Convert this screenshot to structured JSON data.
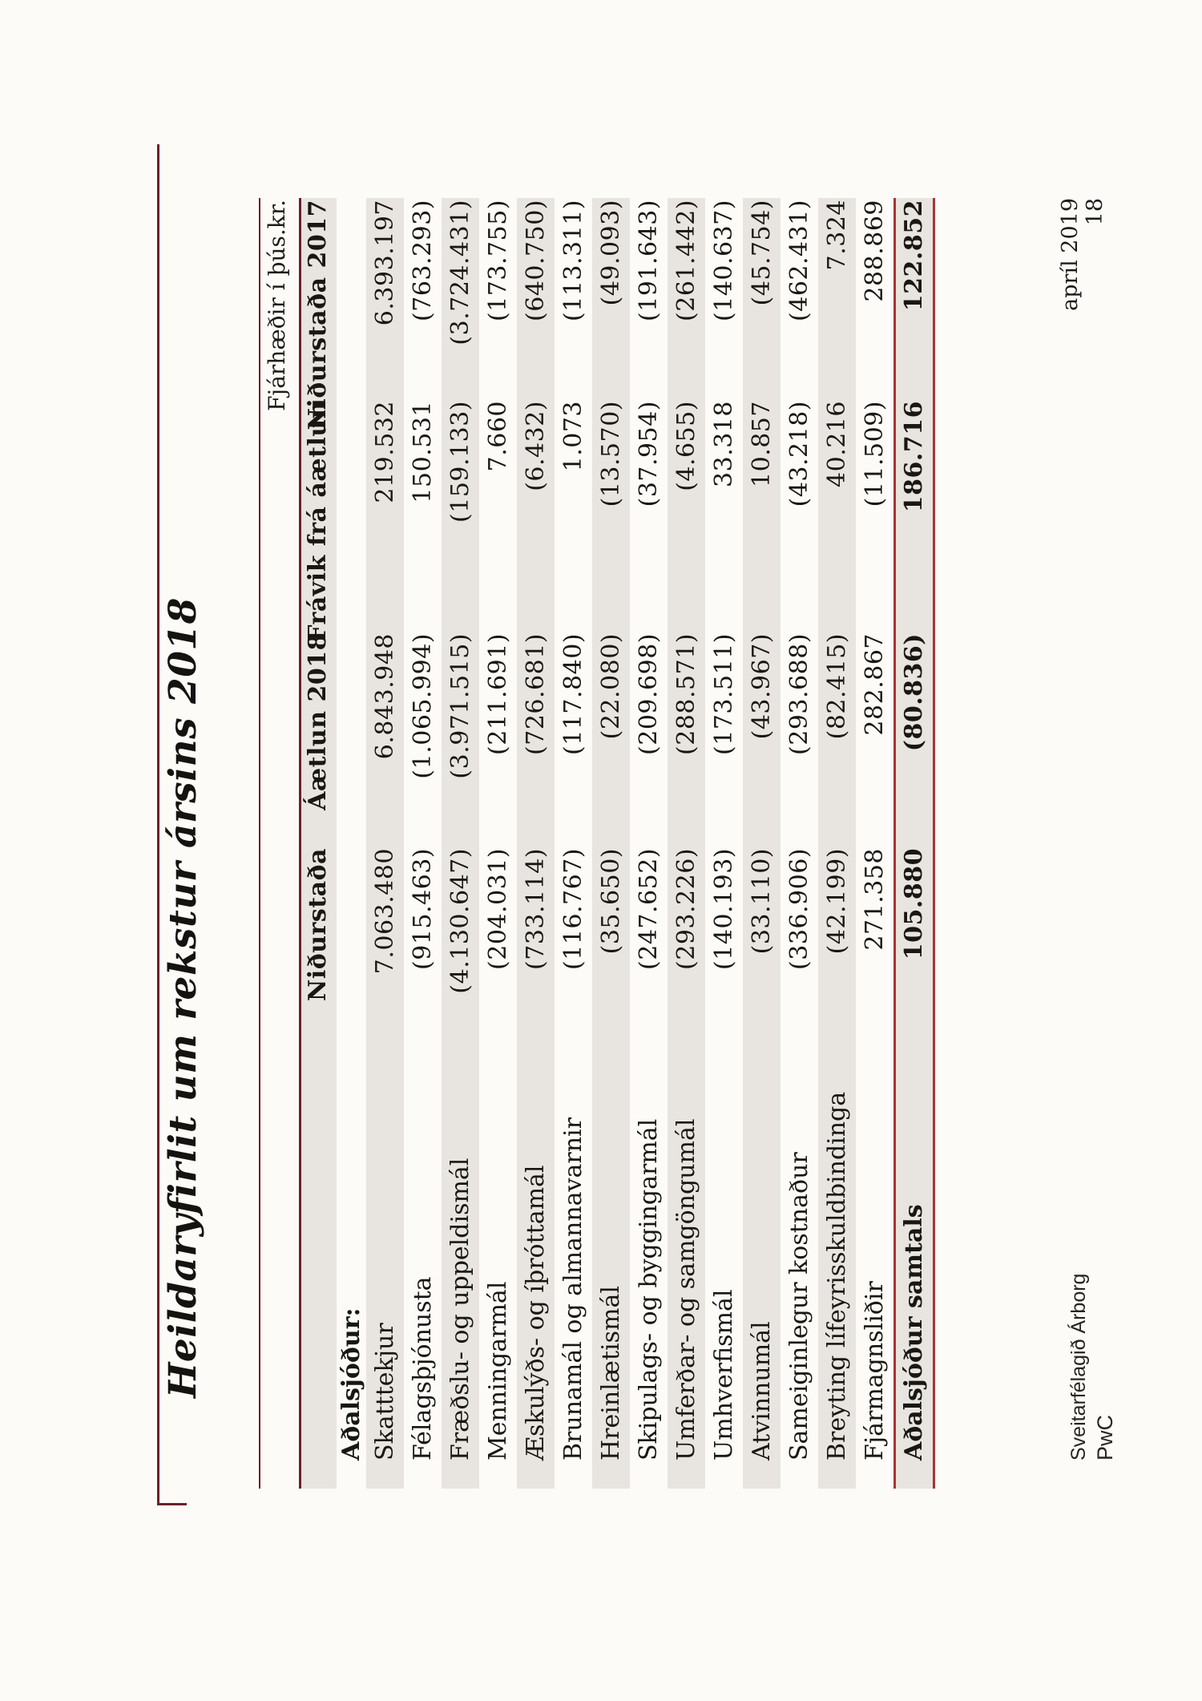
{
  "page": {
    "title": "Heildaryfirlit um rekstur ársins 2018",
    "note": "Fjárhæðir í þús.kr.",
    "footer": {
      "organization": "Sveitarfélagið Árborg",
      "firm": "PwC",
      "date": "apríl 2019",
      "page_number": "18"
    }
  },
  "colors": {
    "rule_maroon": "#6d1f29",
    "rule_red": "#a93430",
    "row_shading": "#e8e4e0",
    "paper": "#fcfbf8"
  },
  "table": {
    "columns": [
      "Niðurstaða",
      "Áætlun 2018",
      "Frávik frá áætlun",
      "Niðurstaða 2017"
    ],
    "section_label": "Aðalsjóður:",
    "rows": [
      {
        "label": "Skatttekjur",
        "values": [
          "7.063.480",
          "6.843.948",
          "219.532",
          "6.393.197"
        ]
      },
      {
        "label": "Félagsþjónusta",
        "values": [
          "(915.463)",
          "(1.065.994)",
          "150.531",
          "(763.293)"
        ]
      },
      {
        "label": "Fræðslu- og uppeldismál",
        "values": [
          "(4.130.647)",
          "(3.971.515)",
          "(159.133)",
          "(3.724.431)"
        ]
      },
      {
        "label": "Menningarmál",
        "values": [
          "(204.031)",
          "(211.691)",
          "7.660",
          "(173.755)"
        ]
      },
      {
        "label": "Æskulýðs- og íþróttamál",
        "values": [
          "(733.114)",
          "(726.681)",
          "(6.432)",
          "(640.750)"
        ]
      },
      {
        "label": "Brunamál og almannavarnir",
        "values": [
          "(116.767)",
          "(117.840)",
          "1.073",
          "(113.311)"
        ]
      },
      {
        "label": "Hreinlætismál",
        "values": [
          "(35.650)",
          "(22.080)",
          "(13.570)",
          "(49.093)"
        ]
      },
      {
        "label": "Skipulags- og byggingarmál",
        "values": [
          "(247.652)",
          "(209.698)",
          "(37.954)",
          "(191.643)"
        ]
      },
      {
        "label": "Umferðar- og samgöngumál",
        "values": [
          "(293.226)",
          "(288.571)",
          "(4.655)",
          "(261.442)"
        ]
      },
      {
        "label": "Umhverfismál",
        "values": [
          "(140.193)",
          "(173.511)",
          "33.318",
          "(140.637)"
        ]
      },
      {
        "label": "Atvinnumál",
        "values": [
          "(33.110)",
          "(43.967)",
          "10.857",
          "(45.754)"
        ]
      },
      {
        "label": "Sameiginlegur kostnaður",
        "values": [
          "(336.906)",
          "(293.688)",
          "(43.218)",
          "(462.431)"
        ]
      },
      {
        "label": "Breyting lífeyrisskuldbindinga",
        "values": [
          "(42.199)",
          "(82.415)",
          "40.216",
          "7.324"
        ]
      },
      {
        "label": "Fjármagnsliðir",
        "values": [
          "271.358",
          "282.867",
          "(11.509)",
          "288.869"
        ]
      }
    ],
    "total_row": {
      "label": "Aðalsjóður samtals",
      "values": [
        "105.880",
        "(80.836)",
        "186.716",
        "122.852"
      ]
    }
  }
}
